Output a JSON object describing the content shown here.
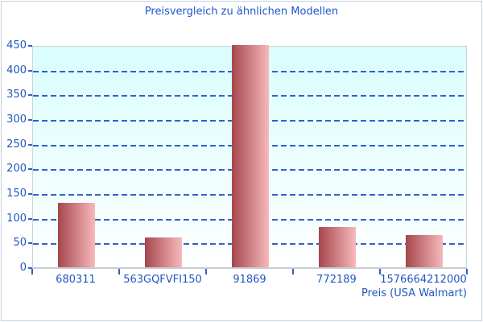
{
  "title": "Preisvergleich zu ähnlichen Modellen",
  "chart_data": {
    "type": "bar",
    "title": "Preisvergleich zu ähnlichen Modellen",
    "categories": [
      "680311",
      "563GQFVFI150",
      "91869",
      "772189",
      "1576664212000"
    ],
    "values": [
      130,
      60,
      450,
      82,
      65
    ],
    "xlabel": "Preis (USA Walmart)",
    "ylabel": "",
    "ylim": [
      0,
      450
    ],
    "yticks": [
      0,
      50,
      100,
      150,
      200,
      250,
      300,
      350,
      400,
      450
    ],
    "grid": "horizontal-dashed",
    "legend": "none"
  },
  "colors": {
    "title_text": "#1d57cb",
    "axis_text": "#2057c0",
    "gridline": "#2e63c8",
    "tick": "#2e63c8",
    "bar_gradient_start": "#a6474d",
    "bar_gradient_end": "#f7b9bb",
    "plot_bg_top": "#d9fdfe",
    "plot_bg_bottom": "#ffffff",
    "plot_border": "#ccd3d8",
    "axis_line": "#c9cdd0",
    "outer_border": "#c6d1de"
  }
}
